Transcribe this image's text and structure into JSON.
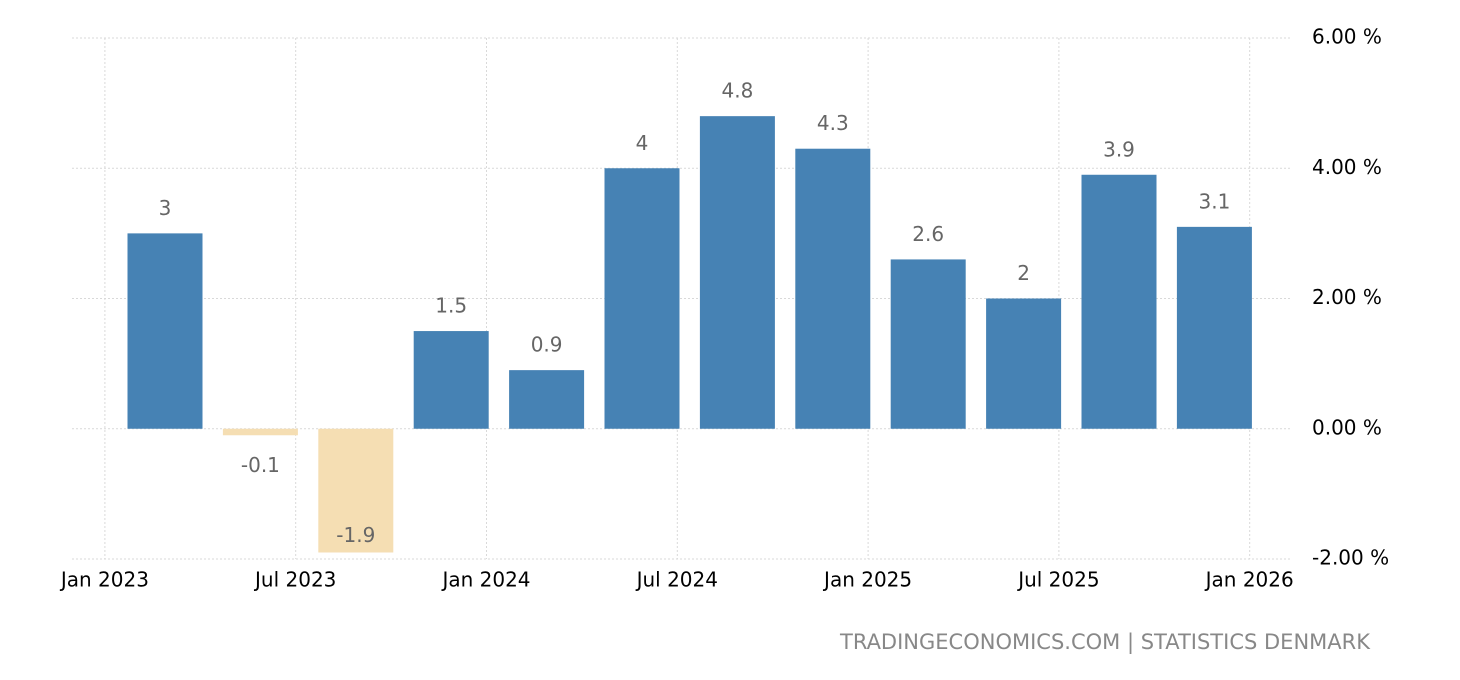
{
  "chart_data": {
    "type": "bar",
    "categories": [
      null,
      null,
      null,
      null,
      null,
      null,
      null,
      null,
      null,
      null,
      null,
      null
    ],
    "values": [
      3,
      -0.1,
      -1.9,
      1.5,
      0.9,
      4,
      4.8,
      4.3,
      2.6,
      2,
      3.9,
      3.1
    ],
    "color": "#4682b4",
    "negative_color": "#f5deb3",
    "xticks": [
      "Jan 2023",
      "Jul 2023",
      "Jan 2024",
      "Jul 2024",
      "Jan 2025",
      "Jul 2025",
      "Jan 2026"
    ],
    "ylim": [
      -2,
      6
    ],
    "yticks": [
      {
        "value": -2,
        "label": "-2.00 %"
      },
      {
        "value": 0,
        "label": "0.00 %"
      },
      {
        "value": 2,
        "label": "2.00 %"
      },
      {
        "value": 4,
        "label": "4.00 %"
      },
      {
        "value": 6,
        "label": "6.00 %"
      }
    ],
    "grid": true,
    "source": "TRADINGECONOMICS.COM | STATISTICS DENMARK"
  }
}
